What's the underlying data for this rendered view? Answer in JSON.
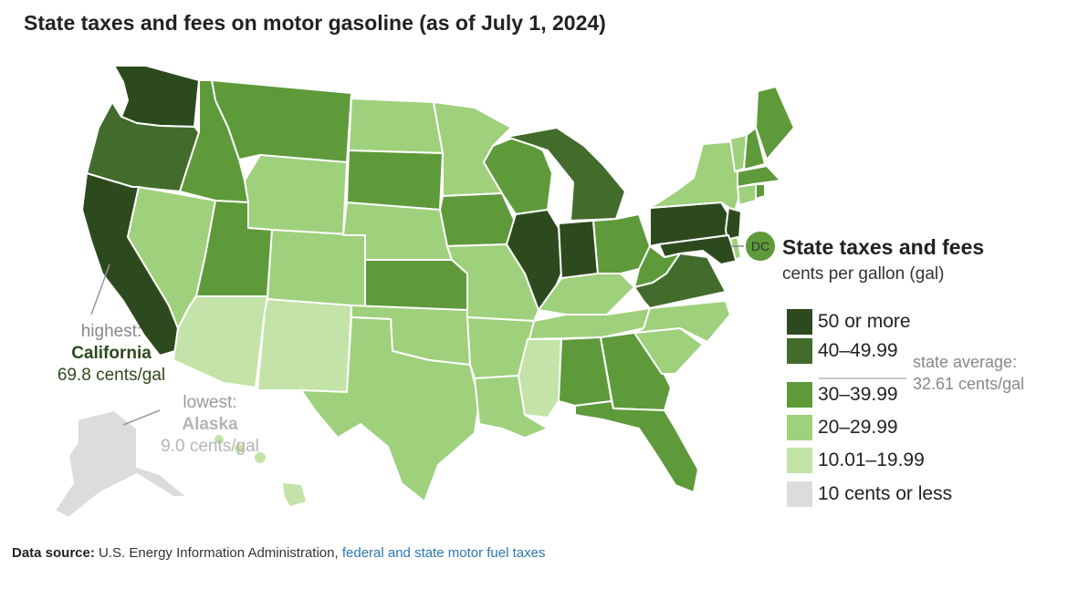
{
  "title": "State taxes and fees on motor gasoline (as of July 1, 2024)",
  "colors": {
    "50_or_more": "#2d4a1e",
    "40_to_49_99": "#436b2c",
    "30_to_39_99": "#5e9a3a",
    "20_to_29_99": "#9fd07c",
    "10_01_to_19_99": "#c3e3a8",
    "10_or_less": "#dcdcdc"
  },
  "legend": {
    "title": "State taxes and fees",
    "subtitle": "cents per gallon (gal)",
    "items": [
      {
        "label": "50 or more",
        "color": "#2d4a1e"
      },
      {
        "label": "40–49.99",
        "color": "#436b2c"
      },
      {
        "label": "30–39.99",
        "color": "#5e9a3a"
      },
      {
        "label": "20–29.99",
        "color": "#9fd07c"
      },
      {
        "label": "10.01–19.99",
        "color": "#c3e3a8"
      },
      {
        "label": "10 cents or less",
        "color": "#dcdcdc"
      }
    ],
    "average_label": "state average:",
    "average_value": "32.61 cents/gal"
  },
  "callouts": {
    "highest": {
      "prefix": "highest:",
      "name": "California",
      "value": "69.8 cents/gal"
    },
    "lowest": {
      "prefix": "lowest:",
      "name": "Alaska",
      "value": "9.0 cents/gal"
    }
  },
  "dc_label": "DC",
  "source": {
    "label": "Data source:",
    "text": "U.S. Energy Information Administration,",
    "link": "federal and state motor fuel taxes"
  }
}
